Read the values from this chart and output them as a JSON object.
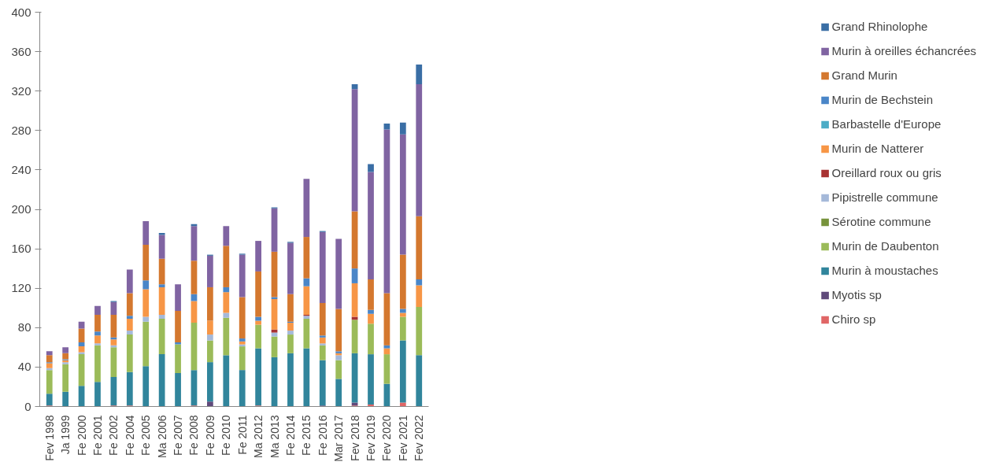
{
  "chart_data": {
    "type": "bar",
    "stacked": true,
    "categories": [
      "Fev 1998",
      "Ja 1999",
      "Fe 2000",
      "Fe 2001",
      "Fe 2002",
      "Fe 2004",
      "Fe 2005",
      "Ma 2006",
      "Fe 2007",
      "Fe 2008",
      "Fe 2009",
      "Fe 2010",
      "Fe 2011",
      "Ma 2012",
      "Ma 2013",
      "Fe 2014",
      "Fe 2015",
      "Fe 2016",
      "Mar 2017",
      "Fev 2018",
      "Fev 2019",
      "Fev 2020",
      "Fev 2021",
      "Fev 2022"
    ],
    "ylim": [
      0,
      400
    ],
    "yticks": [
      0,
      40,
      80,
      120,
      160,
      200,
      240,
      280,
      320,
      360,
      400
    ],
    "grid": false,
    "legend": "right",
    "series": [
      {
        "name": "Chiro sp",
        "color": "#e06666",
        "values": [
          1,
          0,
          0,
          0,
          1,
          1,
          0,
          0,
          0,
          1,
          0,
          0,
          0,
          1,
          0,
          0,
          0,
          0,
          0,
          1,
          2,
          0,
          4,
          0
        ]
      },
      {
        "name": "Myotis sp",
        "color": "#604a7b",
        "values": [
          0,
          0,
          0,
          0,
          0,
          0,
          0,
          0,
          0,
          0,
          5,
          0,
          0,
          0,
          0,
          0,
          0,
          1,
          0,
          3,
          0,
          0,
          0,
          0
        ]
      },
      {
        "name": "Murin à moustaches",
        "color": "#31859c",
        "values": [
          12,
          15,
          21,
          25,
          29,
          34,
          41,
          53,
          34,
          36,
          40,
          52,
          37,
          58,
          50,
          54,
          59,
          46,
          28,
          50,
          51,
          23,
          63,
          52
        ]
      },
      {
        "name": "Murin de Daubenton",
        "color": "#9bbb59",
        "values": [
          24,
          28,
          32,
          37,
          30,
          38,
          45,
          36,
          29,
          48,
          22,
          38,
          24,
          24,
          21,
          19,
          30,
          15,
          19,
          34,
          31,
          30,
          24,
          49
        ]
      },
      {
        "name": "Sérotine commune",
        "color": "#77933c",
        "values": [
          0,
          0,
          0,
          0,
          0,
          0,
          0,
          0,
          0,
          0,
          0,
          0,
          0,
          0,
          0,
          0,
          0,
          0,
          0,
          0,
          0,
          0,
          0,
          0
        ]
      },
      {
        "name": "Pipistrelle commune",
        "color": "#a5b9d9",
        "values": [
          2,
          2,
          2,
          2,
          2,
          4,
          5,
          4,
          0,
          0,
          6,
          5,
          2,
          0,
          4,
          4,
          3,
          2,
          5,
          0,
          0,
          0,
          0,
          0
        ]
      },
      {
        "name": "Oreillard roux ou gris",
        "color": "#a83232",
        "values": [
          0,
          0,
          0,
          0,
          0,
          0,
          0,
          0,
          0,
          0,
          0,
          0,
          0,
          0,
          3,
          0,
          1,
          0,
          0,
          3,
          0,
          0,
          0,
          0
        ]
      },
      {
        "name": "Murin de Natterer",
        "color": "#f79646",
        "values": [
          5,
          2,
          6,
          8,
          6,
          12,
          28,
          28,
          0,
          22,
          14,
          21,
          3,
          4,
          31,
          8,
          29,
          6,
          2,
          34,
          10,
          6,
          4,
          22
        ]
      },
      {
        "name": "Barbastelle d'Europe",
        "color": "#4bacc6",
        "values": [
          0,
          0,
          0,
          0,
          0,
          0,
          0,
          0,
          0,
          0,
          0,
          0,
          0,
          0,
          0,
          0,
          0,
          0,
          0,
          0,
          0,
          0,
          0,
          0
        ]
      },
      {
        "name": "Murin de Bechstein",
        "color": "#4a86c8",
        "values": [
          1,
          1,
          4,
          4,
          2,
          3,
          9,
          3,
          2,
          7,
          0,
          5,
          3,
          4,
          2,
          1,
          8,
          2,
          2,
          15,
          4,
          3,
          4,
          6
        ]
      },
      {
        "name": "Grand Murin",
        "color": "#d4782f",
        "values": [
          7,
          6,
          14,
          17,
          23,
          23,
          36,
          26,
          32,
          34,
          34,
          42,
          42,
          46,
          46,
          28,
          42,
          33,
          43,
          58,
          31,
          53,
          55,
          64
        ]
      },
      {
        "name": "Murin à oreilles échancrées",
        "color": "#8064a2",
        "values": [
          4,
          6,
          7,
          9,
          13,
          24,
          24,
          24,
          27,
          35,
          32,
          20,
          43,
          31,
          44,
          52,
          59,
          72,
          71,
          124,
          109,
          166,
          122,
          134
        ]
      },
      {
        "name": "Grand Rhinolophe",
        "color": "#3a6ea5",
        "values": [
          0,
          0,
          0,
          0,
          1,
          0,
          0,
          2,
          0,
          2,
          1,
          0,
          1,
          0,
          1,
          1,
          0,
          1,
          0,
          5,
          8,
          6,
          12,
          20
        ]
      }
    ]
  }
}
